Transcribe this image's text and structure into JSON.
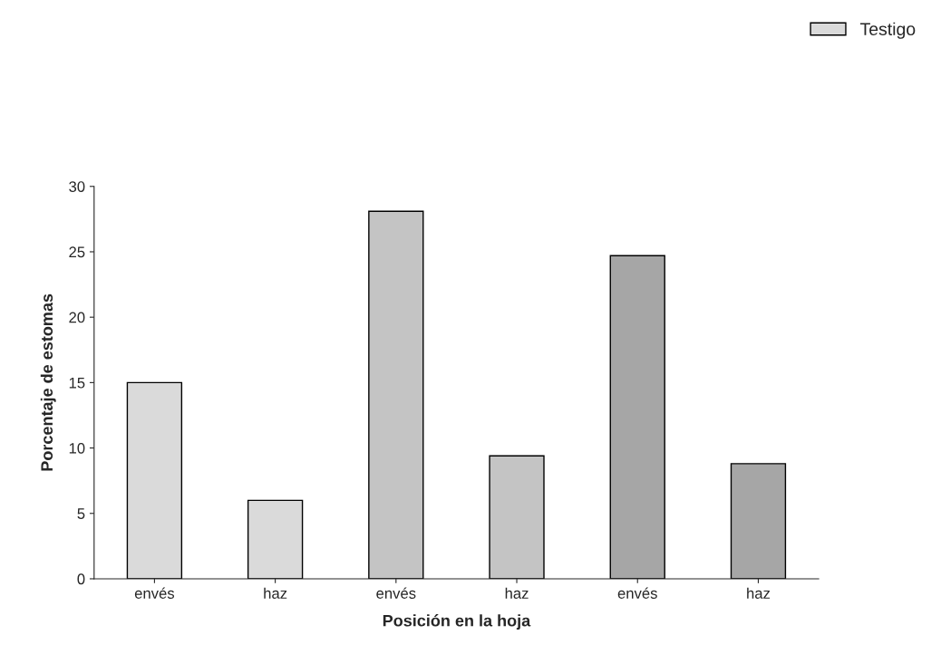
{
  "chart_data": {
    "type": "bar",
    "xlabel": "Posición en la hoja",
    "ylabel": "Porcentaje de estomas",
    "categories": [
      "envés",
      "haz",
      "envés",
      "haz",
      "envés",
      "haz"
    ],
    "series": [
      {
        "name": "Testigo",
        "color": "#dadada",
        "values": [
          15,
          6,
          null,
          null,
          null,
          null
        ]
      },
      {
        "color": "#c4c4c4",
        "values": [
          null,
          null,
          28.1,
          9.4,
          null,
          null
        ]
      },
      {
        "color": "#a6a6a6",
        "values": [
          null,
          null,
          null,
          null,
          24.7,
          8.8
        ]
      }
    ],
    "ylim": [
      0,
      30
    ],
    "yticks": [
      0,
      5,
      10,
      15,
      20,
      25,
      30
    ],
    "grid": false,
    "legend": "top right"
  }
}
